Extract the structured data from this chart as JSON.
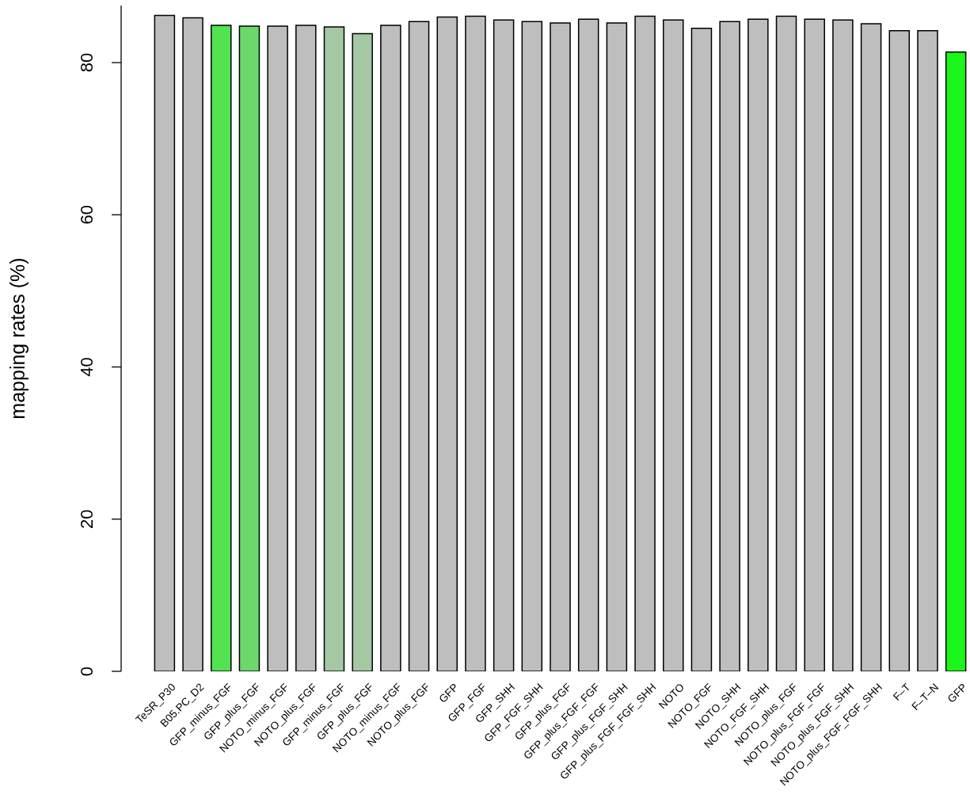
{
  "chart_data": {
    "type": "bar",
    "ylabel": "mapping rates (%)",
    "categories": [
      "TeSR_P30",
      "B05.PC_D2",
      "GFP_minus_FGF",
      "GFP_plus_FGF",
      "NOTO_minus_FGF",
      "NOTO_plus_FGF",
      "GFP_minus_FGF",
      "GFP_plus_FGF",
      "NOTO_minus_FGF",
      "NOTO_plus_FGF",
      "GFP",
      "GFP_FGF",
      "GFP_SHH",
      "GFP_FGF_SHH",
      "GFP_plus_FGF",
      "GFP_plus_FGF_FGF",
      "GFP_plus_FGF_SHH",
      "GFP_plus_FGF_FGF_SHH",
      "NOTO",
      "NOTO_FGF",
      "NOTO_SHH",
      "NOTO_FGF_SHH",
      "NOTO_plus_FGF",
      "NOTO_plus_FGF_FGF",
      "NOTO_plus_FGF_SHH",
      "NOTO_plus_FGF_FGF_SHH",
      "F–T",
      "F–T–N",
      "GFP"
    ],
    "values": [
      86.2,
      85.9,
      84.9,
      84.8,
      84.8,
      84.9,
      84.7,
      83.8,
      84.9,
      85.4,
      86.0,
      86.1,
      85.6,
      85.4,
      85.2,
      85.7,
      85.2,
      86.1,
      85.6,
      84.5,
      85.4,
      85.7,
      86.1,
      85.7,
      85.6,
      85.1,
      84.2,
      84.2,
      81.4
    ],
    "colors": [
      "#bebebe",
      "#bebebe",
      "#52e252",
      "#6cd86c",
      "#bebebe",
      "#bebebe",
      "#a3c8a3",
      "#a3c8a3",
      "#bebebe",
      "#bebebe",
      "#bebebe",
      "#bebebe",
      "#bebebe",
      "#bebebe",
      "#bebebe",
      "#bebebe",
      "#bebebe",
      "#bebebe",
      "#bebebe",
      "#bebebe",
      "#bebebe",
      "#bebebe",
      "#bebebe",
      "#bebebe",
      "#bebebe",
      "#bebebe",
      "#bebebe",
      "#bebebe",
      "#1af51a"
    ],
    "ylim": [
      0,
      87.5
    ],
    "yticks": [
      0,
      20,
      40,
      60,
      80
    ],
    "grid": false
  }
}
